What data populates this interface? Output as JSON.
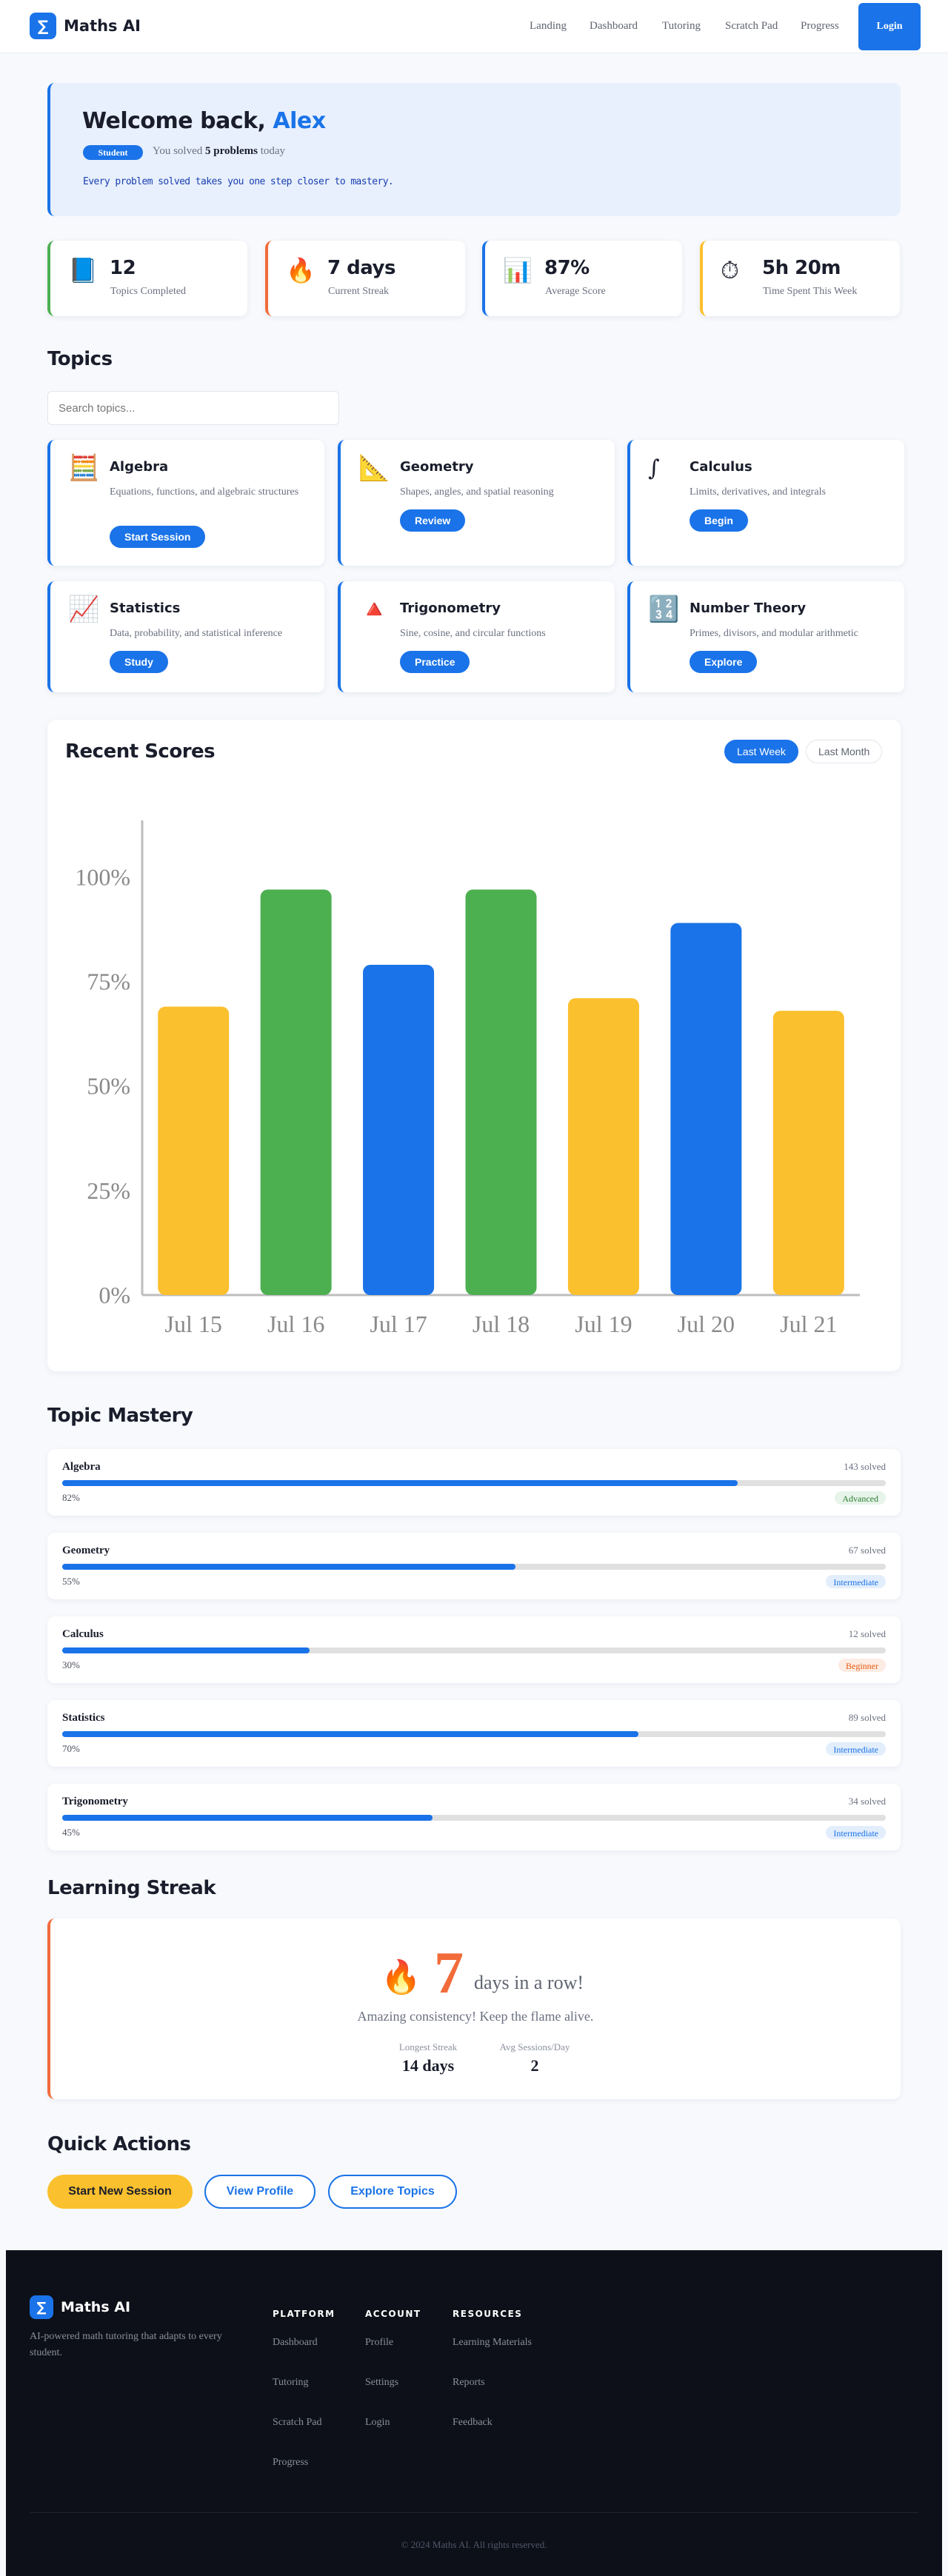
{
  "nav": {
    "brand": "Maths AI",
    "logo_glyph": "∑",
    "links": [
      "Landing",
      "Dashboard",
      "Tutoring",
      "Scratch Pad",
      "Progress"
    ],
    "login": "Login"
  },
  "hero": {
    "welcome": "Welcome back,",
    "name": "Alex",
    "badge": "Student",
    "solved_prefix": "You solved",
    "solved_count": "5 problems",
    "solved_suffix": "today",
    "tagline": "Every problem solved takes you one step closer to mastery."
  },
  "stats": [
    {
      "icon": "📘",
      "icon_name": "book-icon",
      "value": "12",
      "label": "Topics Completed",
      "color": "#4caf50"
    },
    {
      "icon": "🔥",
      "icon_name": "flame-icon",
      "value": "7 days",
      "label": "Current Streak",
      "color": "#f26b3a"
    },
    {
      "icon": "📊",
      "icon_name": "bar-chart-icon",
      "value": "87%",
      "label": "Average Score",
      "color": "#1a73e8"
    },
    {
      "icon": "⏱",
      "icon_name": "stopwatch-icon",
      "value": "5h 20m",
      "label": "Time Spent This Week",
      "color": "#fbc02d"
    }
  ],
  "topics_section": {
    "title": "Topics",
    "search_placeholder": "Search topics...",
    "items": [
      {
        "icon": "🧮",
        "icon_name": "abacus-icon",
        "name": "Algebra",
        "desc": "Equations, functions, and algebraic structures",
        "action": "Start Session"
      },
      {
        "icon": "📐",
        "icon_name": "triangle-ruler-icon",
        "name": "Geometry",
        "desc": "Shapes, angles, and spatial reasoning",
        "action": "Review"
      },
      {
        "icon": "∫",
        "icon_name": "integral-icon",
        "name": "Calculus",
        "desc": "Limits, derivatives, and integrals",
        "action": "Begin"
      },
      {
        "icon": "📈",
        "icon_name": "trend-chart-icon",
        "name": "Statistics",
        "desc": "Data, probability, and statistical inference",
        "action": "Study"
      },
      {
        "icon": "🔺",
        "icon_name": "red-triangle-icon",
        "name": "Trigonometry",
        "desc": "Sine, cosine, and circular functions",
        "action": "Practice"
      },
      {
        "icon": "🔢",
        "icon_name": "numbers-icon",
        "name": "Number Theory",
        "desc": "Primes, divisors, and modular arithmetic",
        "action": "Explore"
      }
    ]
  },
  "scores": {
    "title": "Recent Scores",
    "toggle": [
      "Last Week",
      "Last Month"
    ]
  },
  "chart_data": {
    "type": "bar",
    "title": "",
    "xlabel": "",
    "ylabel": "",
    "categories": [
      "Jul 15",
      "Jul 16",
      "Jul 17",
      "Jul 18",
      "Jul 19",
      "Jul 20",
      "Jul 21"
    ],
    "values": [
      69,
      97,
      79,
      97,
      71,
      89,
      68
    ],
    "bar_colors": [
      "#fbc02d",
      "#4caf50",
      "#1a73e8",
      "#4caf50",
      "#fbc02d",
      "#1a73e8",
      "#fbc02d"
    ],
    "ylim": [
      0,
      110
    ],
    "yticks": [
      0,
      25,
      50,
      75,
      100
    ],
    "ytick_labels": [
      "0%",
      "25%",
      "50%",
      "75%",
      "100%"
    ],
    "grid": false,
    "legend": "none"
  },
  "mastery": {
    "title": "Topic Mastery",
    "items": [
      {
        "name": "Algebra",
        "solved": "143 solved",
        "pct": "82%",
        "value": 0.82,
        "level": "Advanced",
        "level_fg": "#2e7d32",
        "level_bg": "#e6f4ea"
      },
      {
        "name": "Geometry",
        "solved": "67 solved",
        "pct": "55%",
        "value": 0.55,
        "level": "Intermediate",
        "level_fg": "#1a73e8",
        "level_bg": "#e3eefc"
      },
      {
        "name": "Calculus",
        "solved": "12 solved",
        "pct": "30%",
        "value": 0.3,
        "level": "Beginner",
        "level_fg": "#e8590c",
        "level_bg": "#fdece4"
      },
      {
        "name": "Statistics",
        "solved": "89 solved",
        "pct": "70%",
        "value": 0.7,
        "level": "Intermediate",
        "level_fg": "#1a73e8",
        "level_bg": "#e3eefc"
      },
      {
        "name": "Trigonometry",
        "solved": "34 solved",
        "pct": "45%",
        "value": 0.45,
        "level": "Intermediate",
        "level_fg": "#1a73e8",
        "level_bg": "#e3eefc"
      }
    ]
  },
  "streak": {
    "title": "Learning Streak",
    "count": "7",
    "suffix": "days in a row!",
    "message": "Amazing consistency! Keep the flame alive.",
    "longest_label": "Longest Streak",
    "longest_value": "14 days",
    "avg_label": "Avg Sessions/Day",
    "avg_value": "2"
  },
  "quick": {
    "title": "Quick Actions",
    "start": "Start New Session",
    "profile": "View Profile",
    "explore": "Explore Topics"
  },
  "footer": {
    "brand": "Maths AI",
    "desc": "AI-powered math tutoring that adapts to every student.",
    "platform_title": "PLATFORM",
    "platform": [
      "Dashboard",
      "Tutoring",
      "Scratch Pad",
      "Progress"
    ],
    "account_title": "ACCOUNT",
    "account": [
      "Profile",
      "Settings",
      "Login"
    ],
    "resources_title": "RESOURCES",
    "resources": [
      "Learning Materials",
      "Reports",
      "Feedback"
    ],
    "copyright": "© 2024 Maths AI. All rights reserved."
  },
  "colors": {
    "accent": "#1a73e8",
    "streak": "#f26b3a",
    "cta": "#fbc02d"
  }
}
